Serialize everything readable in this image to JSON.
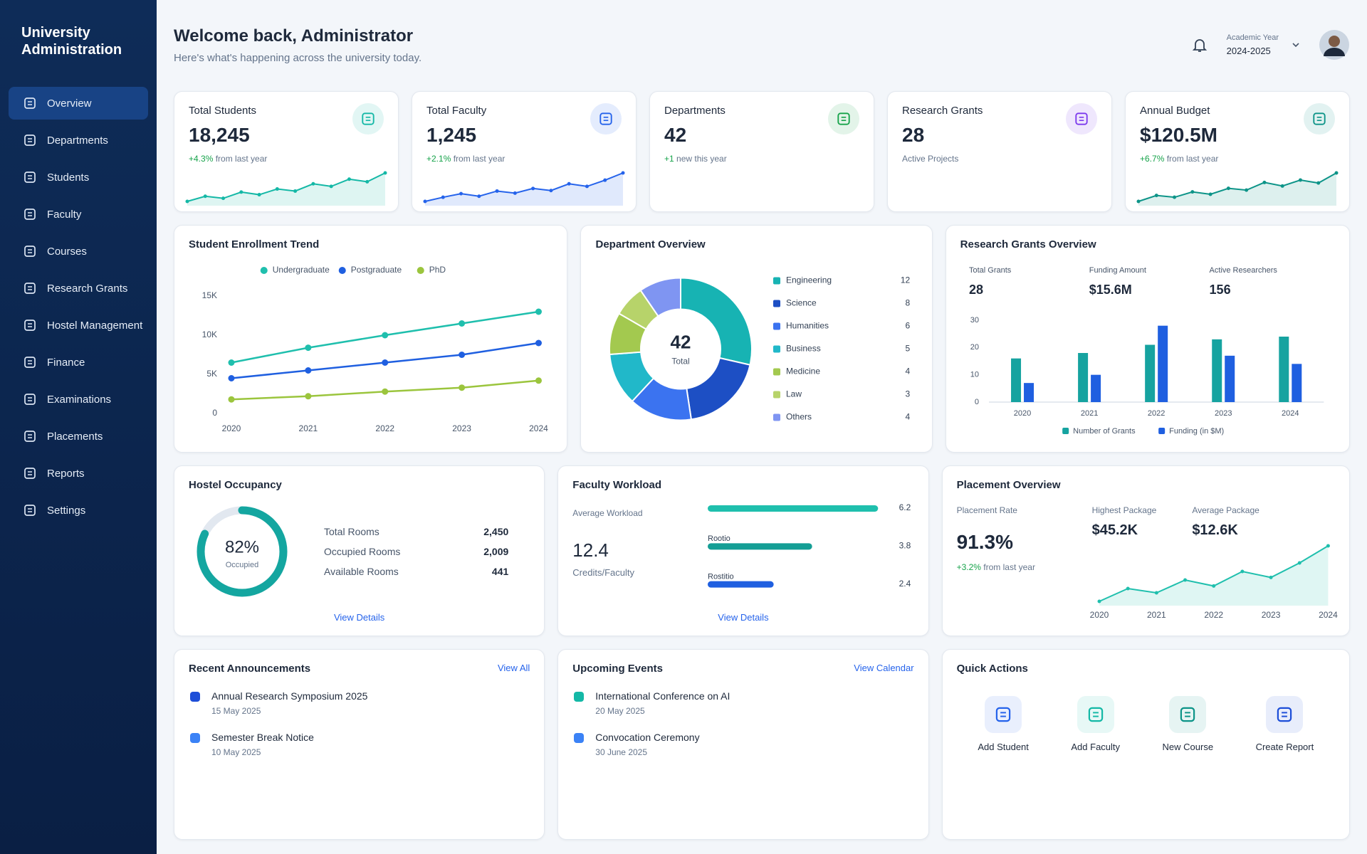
{
  "sidebar": {
    "title": "University Administration",
    "items": [
      "Overview",
      "Departments",
      "Students",
      "Faculty",
      "Courses",
      "Research Grants",
      "Hostel Management",
      "Finance",
      "Examinations",
      "Placements",
      "Reports",
      "Settings"
    ]
  },
  "header": {
    "title": "Welcome back, Administrator",
    "subtitle": "Here's what's happening across the university today.",
    "year_label": "Academic Year",
    "year": "2024-2025"
  },
  "stats": [
    {
      "label": "Total Students",
      "value": "18,245",
      "change": "+4.3%",
      "note": "from last year",
      "color": "#14b8a6",
      "sparkline": [
        3,
        4,
        3.6,
        4.8,
        4.3,
        5.4,
        5,
        6.4,
        5.9,
        7.3,
        6.8,
        8.5
      ]
    },
    {
      "label": "Total Faculty",
      "value": "1,245",
      "change": "+2.1%",
      "note": "from last year",
      "color": "#2563eb",
      "sparkline": [
        3,
        3.8,
        4.5,
        4,
        5,
        4.6,
        5.5,
        5.1,
        6.4,
        5.9,
        7.1,
        8.5
      ]
    },
    {
      "label": "Departments",
      "value": "42",
      "change": "+1",
      "note": "new this year",
      "color": "#16a34a"
    },
    {
      "label": "Research Grants",
      "value": "28",
      "note": "Active Projects",
      "color": "#7c3aed"
    },
    {
      "label": "Annual Budget",
      "value": "$120.5M",
      "change": "+6.7%",
      "note": "from last year",
      "color": "#0d9488",
      "sparkline": [
        3,
        4,
        3.7,
        4.6,
        4.2,
        5.2,
        4.9,
        6.2,
        5.6,
        6.6,
        6.1,
        7.8
      ]
    }
  ],
  "chart_data": [
    {
      "type": "line",
      "title": "Student Enrollment Trend",
      "categories": [
        "2020",
        "2021",
        "2022",
        "2023",
        "2024"
      ],
      "series": [
        {
          "name": "Undergraduate",
          "color": "#1fbfad",
          "values": [
            6500,
            8400,
            10000,
            11500,
            13000
          ]
        },
        {
          "name": "Postgraduate",
          "color": "#1f5fe0",
          "values": [
            4500,
            5500,
            6500,
            7500,
            9000
          ]
        },
        {
          "name": "PhD",
          "color": "#9bc53d",
          "values": [
            1800,
            2200,
            2800,
            3300,
            4200
          ]
        }
      ],
      "ylim": [
        0,
        15000
      ],
      "yticks": [
        0,
        {
          "value": 5000,
          "label": "5K"
        },
        {
          "value": 10000,
          "label": "10K"
        },
        {
          "value": 15000,
          "label": "15K"
        }
      ],
      "grid": false
    },
    {
      "type": "pie",
      "donut": true,
      "title": "Department Overview",
      "center_text": "42",
      "center_caption": "Total",
      "categories": [
        "Engineering",
        "Science",
        "Humanities",
        "Business",
        "Medicine",
        "Law",
        "Others"
      ],
      "values": [
        12,
        8,
        6,
        5,
        4,
        3,
        4
      ],
      "colors": [
        "#17b3b3",
        "#1d4fc4",
        "#3b73f0",
        "#21b8c9",
        "#a3c94f",
        "#b7d36a",
        "#7f95f2"
      ]
    },
    {
      "type": "bar",
      "title": "Research Grants Overview",
      "summary": [
        {
          "label": "Total Grants",
          "value": "28"
        },
        {
          "label": "Funding Amount",
          "value": "$15.6M"
        },
        {
          "label": "Active Researchers",
          "value": "156"
        }
      ],
      "categories": [
        "2020",
        "2021",
        "2022",
        "2023",
        "2024"
      ],
      "series": [
        {
          "name": "Number of Grants",
          "color": "#16a3a0",
          "values": [
            16,
            18,
            21,
            23,
            24
          ]
        },
        {
          "name": "Funding (in $M)",
          "color": "#1f5fe0",
          "values": [
            7,
            10,
            28,
            17,
            14
          ]
        }
      ],
      "ylim": [
        0,
        30
      ],
      "yticks": [
        0,
        10,
        20,
        30
      ]
    },
    {
      "type": "line",
      "title": "Placement Overview",
      "stats": [
        {
          "label": "Placement Rate",
          "value": "91.3%",
          "change": "+3.2%",
          "note": "from last year"
        },
        {
          "label": "Highest Package",
          "value": "$45.2K"
        },
        {
          "label": "Average Package",
          "value": "$12.6K"
        }
      ],
      "categories": [
        "2020",
        null,
        "2021",
        null,
        "2022",
        null,
        "2023",
        null,
        "2024"
      ],
      "values": [
        2,
        3.5,
        3,
        4.5,
        3.8,
        5.5,
        4.8,
        6.5,
        8.5
      ],
      "color": "#1fbfad"
    },
    {
      "type": "bar",
      "orientation": "horizontal",
      "title": "Faculty Workload",
      "summary_label": "Average Workload",
      "summary_value": "12.4",
      "summary_unit": "Credits/Faculty",
      "categories": [
        null,
        "Rootio",
        "Rostitio"
      ],
      "values": [
        6.2,
        3.8,
        2.4
      ],
      "colors": [
        "#1fbfad",
        "#149e95",
        "#1f5fe0"
      ],
      "link": "View Details"
    }
  ],
  "hostel": {
    "title": "Hostel Occupancy",
    "occupancy": 82,
    "value_label": "82%",
    "caption": "Occupied",
    "color": "#14a6a0",
    "rows": [
      {
        "label": "Total Rooms",
        "value": "2,450"
      },
      {
        "label": "Occupied Rooms",
        "value": "2,009"
      },
      {
        "label": "Available Rooms",
        "value": "441"
      }
    ],
    "link": "View Details"
  },
  "announcements": {
    "title": "Recent Announcements",
    "link": "View All",
    "items": [
      {
        "title": "Annual Research Symposium 2025",
        "date": "15 May 2025"
      },
      {
        "title": "Semester Break Notice",
        "date": "10 May 2025"
      }
    ]
  },
  "events": {
    "title": "Upcoming Events",
    "link": "View Calendar",
    "items": [
      {
        "title": "International Conference on AI",
        "date": "20 May 2025"
      },
      {
        "title": "Convocation Ceremony",
        "date": "30 June 2025"
      }
    ]
  },
  "quick_actions": {
    "title": "Quick Actions",
    "items": [
      "Add Student",
      "Add Faculty",
      "New Course",
      "Create Report"
    ]
  }
}
